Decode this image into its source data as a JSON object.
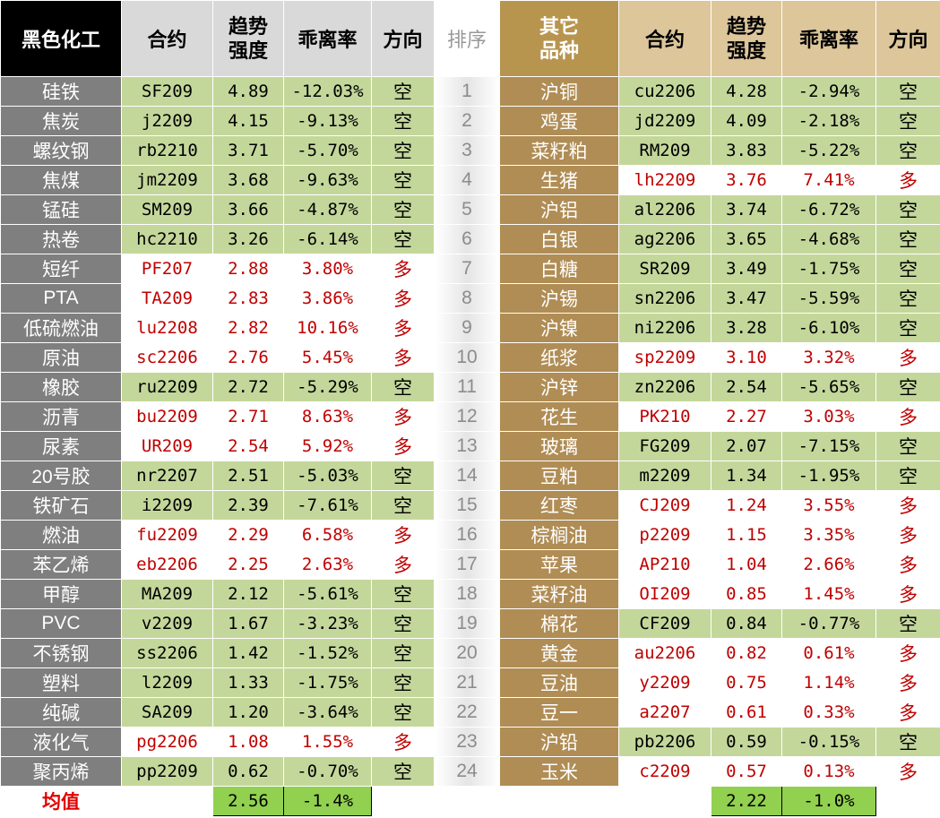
{
  "header": {
    "left": [
      "黑色化工",
      "合约",
      "趋势强度",
      "乖离率",
      "方向"
    ],
    "rank": "排序",
    "right": [
      "其它品种",
      "合约",
      "趋势强度",
      "乖离率",
      "方向"
    ]
  },
  "left_rows": [
    [
      "硅铁",
      "SF209",
      "4.89",
      "-12.03%",
      "空"
    ],
    [
      "焦炭",
      "j2209",
      "4.15",
      "-9.13%",
      "空"
    ],
    [
      "螺纹钢",
      "rb2210",
      "3.71",
      "-5.70%",
      "空"
    ],
    [
      "焦煤",
      "jm2209",
      "3.68",
      "-9.63%",
      "空"
    ],
    [
      "锰硅",
      "SM209",
      "3.66",
      "-4.87%",
      "空"
    ],
    [
      "热卷",
      "hc2210",
      "3.26",
      "-6.14%",
      "空"
    ],
    [
      "短纤",
      "PF207",
      "2.88",
      "3.80%",
      "多"
    ],
    [
      "PTA",
      "TA209",
      "2.83",
      "3.86%",
      "多"
    ],
    [
      "低硫燃油",
      "lu2208",
      "2.82",
      "10.16%",
      "多"
    ],
    [
      "原油",
      "sc2206",
      "2.76",
      "5.45%",
      "多"
    ],
    [
      "橡胶",
      "ru2209",
      "2.72",
      "-5.29%",
      "空"
    ],
    [
      "沥青",
      "bu2209",
      "2.71",
      "8.63%",
      "多"
    ],
    [
      "尿素",
      "UR209",
      "2.54",
      "5.92%",
      "多"
    ],
    [
      "20号胶",
      "nr2207",
      "2.51",
      "-5.03%",
      "空"
    ],
    [
      "铁矿石",
      "i2209",
      "2.39",
      "-7.61%",
      "空"
    ],
    [
      "燃油",
      "fu2209",
      "2.29",
      "6.58%",
      "多"
    ],
    [
      "苯乙烯",
      "eb2206",
      "2.25",
      "2.63%",
      "多"
    ],
    [
      "甲醇",
      "MA209",
      "2.12",
      "-5.61%",
      "空"
    ],
    [
      "PVC",
      "v2209",
      "1.67",
      "-3.23%",
      "空"
    ],
    [
      "不锈钢",
      "ss2206",
      "1.42",
      "-1.52%",
      "空"
    ],
    [
      "塑料",
      "l2209",
      "1.33",
      "-1.75%",
      "空"
    ],
    [
      "纯碱",
      "SA209",
      "1.20",
      "-3.64%",
      "空"
    ],
    [
      "液化气",
      "pg2206",
      "1.08",
      "1.55%",
      "多"
    ],
    [
      "聚丙烯",
      "pp2209",
      "0.62",
      "-0.70%",
      "空"
    ]
  ],
  "ranks": [
    "1",
    "2",
    "3",
    "4",
    "5",
    "6",
    "7",
    "8",
    "9",
    "10",
    "11",
    "12",
    "13",
    "14",
    "15",
    "16",
    "17",
    "18",
    "19",
    "20",
    "21",
    "22",
    "23",
    "24"
  ],
  "right_rows": [
    [
      "沪铜",
      "cu2206",
      "4.28",
      "-2.94%",
      "空"
    ],
    [
      "鸡蛋",
      "jd2209",
      "4.09",
      "-2.18%",
      "空"
    ],
    [
      "菜籽粕",
      "RM209",
      "3.83",
      "-5.22%",
      "空"
    ],
    [
      "生猪",
      "lh2209",
      "3.76",
      "7.41%",
      "多"
    ],
    [
      "沪铝",
      "al2206",
      "3.74",
      "-6.72%",
      "空"
    ],
    [
      "白银",
      "ag2206",
      "3.65",
      "-4.68%",
      "空"
    ],
    [
      "白糖",
      "SR209",
      "3.49",
      "-1.75%",
      "空"
    ],
    [
      "沪锡",
      "sn2206",
      "3.47",
      "-5.59%",
      "空"
    ],
    [
      "沪镍",
      "ni2206",
      "3.28",
      "-6.10%",
      "空"
    ],
    [
      "纸浆",
      "sp2209",
      "3.10",
      "3.32%",
      "多"
    ],
    [
      "沪锌",
      "zn2206",
      "2.54",
      "-5.65%",
      "空"
    ],
    [
      "花生",
      "PK210",
      "2.27",
      "3.03%",
      "多"
    ],
    [
      "玻璃",
      "FG209",
      "2.07",
      "-7.15%",
      "空"
    ],
    [
      "豆粕",
      "m2209",
      "1.34",
      "-1.95%",
      "空"
    ],
    [
      "红枣",
      "CJ209",
      "1.24",
      "3.55%",
      "多"
    ],
    [
      "棕榈油",
      "p2209",
      "1.15",
      "3.35%",
      "多"
    ],
    [
      "苹果",
      "AP210",
      "1.04",
      "2.66%",
      "多"
    ],
    [
      "菜籽油",
      "OI209",
      "0.85",
      "1.45%",
      "多"
    ],
    [
      "棉花",
      "CF209",
      "0.84",
      "-0.77%",
      "空"
    ],
    [
      "黄金",
      "au2206",
      "0.82",
      "0.61%",
      "多"
    ],
    [
      "豆油",
      "y2209",
      "0.75",
      "1.14%",
      "多"
    ],
    [
      "豆一",
      "a2207",
      "0.61",
      "0.33%",
      "多"
    ],
    [
      "沪铅",
      "pb2206",
      "0.59",
      "-0.15%",
      "空"
    ],
    [
      "玉米",
      "c2209",
      "0.57",
      "0.13%",
      "多"
    ]
  ],
  "footer": {
    "label": "均值",
    "left": [
      "2.56",
      "-1.4%"
    ],
    "right": [
      "2.22",
      "-1.0%"
    ]
  }
}
